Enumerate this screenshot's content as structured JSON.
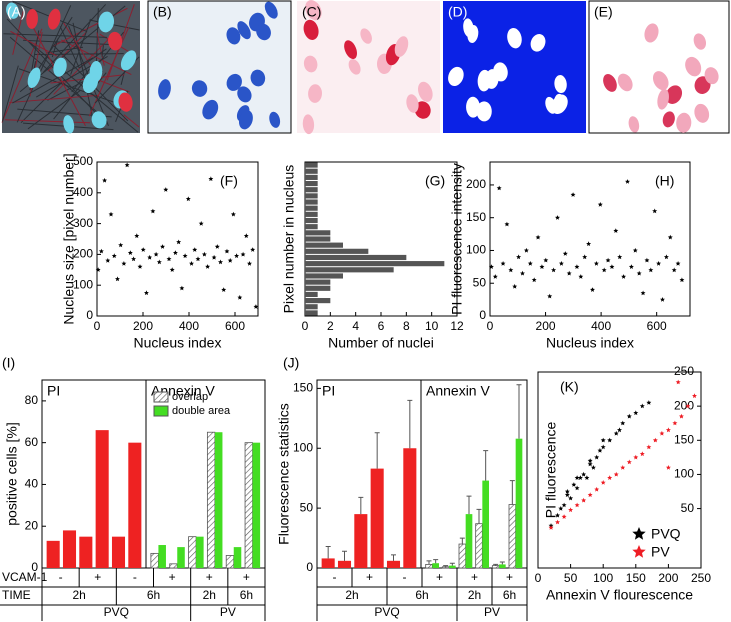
{
  "images": [
    {
      "label": "(A)"
    },
    {
      "label": "(B)"
    },
    {
      "label": "(C)"
    },
    {
      "label": "(D)"
    },
    {
      "label": "(E)"
    }
  ],
  "chart_data": [
    {
      "type": "scatter",
      "label": "(F)",
      "xlabel": "Nucleus index",
      "ylabel": "Nucleus size [pixel number]",
      "xlim": [
        0,
        700
      ],
      "xticks": [
        0,
        200,
        400,
        600
      ],
      "ylim": [
        0,
        500
      ],
      "yticks": [
        0,
        100,
        200,
        300,
        400,
        500
      ],
      "x": [
        5,
        19,
        33,
        47,
        61,
        75,
        89,
        103,
        117,
        131,
        145,
        159,
        173,
        187,
        201,
        215,
        229,
        243,
        257,
        271,
        285,
        299,
        313,
        327,
        341,
        355,
        369,
        383,
        397,
        411,
        425,
        439,
        453,
        467,
        481,
        495,
        509,
        523,
        537,
        551,
        565,
        579,
        593,
        607,
        621,
        635,
        649,
        663,
        677,
        691
      ],
      "series": [
        {
          "color": "#000000",
          "values": [
            150,
            210,
            440,
            180,
            330,
            195,
            120,
            230,
            170,
            490,
            205,
            185,
            260,
            160,
            215,
            75,
            190,
            340,
            200,
            175,
            225,
            410,
            185,
            150,
            205,
            240,
            90,
            195,
            380,
            170,
            215,
            185,
            300,
            200,
            160,
            445,
            190,
            225,
            175,
            85,
            210,
            180,
            330,
            195,
            60,
            200,
            260,
            170,
            215,
            30
          ]
        }
      ]
    },
    {
      "type": "histogram",
      "label": "(G)",
      "orientation": "horizontal",
      "xlabel": "Number of nuclei",
      "ylabel": "Pixel number in nucleus",
      "xlim": [
        0,
        12
      ],
      "xticks": [
        0,
        2,
        4,
        6,
        8,
        10,
        12
      ],
      "ylim": [
        0,
        500
      ],
      "color": "#555555",
      "bins": [
        0,
        20,
        40,
        60,
        80,
        100,
        120,
        140,
        160,
        180,
        200,
        220,
        240,
        260,
        280,
        300,
        320,
        340,
        360,
        380,
        400,
        420,
        440,
        460,
        480,
        500
      ],
      "counts": [
        1,
        1,
        2,
        1,
        2,
        2,
        3,
        7,
        11,
        8,
        5,
        3,
        2,
        2,
        1,
        1,
        1,
        1,
        1,
        1,
        1,
        1,
        1,
        1,
        1
      ]
    },
    {
      "type": "scatter",
      "label": "(H)",
      "xlabel": "Nucleus index",
      "ylabel": "PI fluorescence intensity",
      "xlim": [
        0,
        720
      ],
      "xticks": [
        0,
        200,
        400,
        600
      ],
      "ylim": [
        0,
        235
      ],
      "yticks": [
        0,
        50,
        100,
        150,
        200
      ],
      "x": [
        5,
        19,
        33,
        47,
        61,
        75,
        89,
        103,
        117,
        131,
        145,
        159,
        173,
        187,
        201,
        215,
        229,
        243,
        257,
        271,
        285,
        299,
        313,
        327,
        341,
        355,
        369,
        383,
        397,
        411,
        425,
        439,
        453,
        467,
        481,
        495,
        509,
        523,
        537,
        551,
        565,
        579,
        593,
        607,
        621,
        635,
        649,
        663,
        677,
        691
      ],
      "series": [
        {
          "color": "#000000",
          "values": [
            75,
            60,
            195,
            80,
            140,
            70,
            45,
            90,
            65,
            100,
            80,
            55,
            120,
            75,
            85,
            30,
            70,
            150,
            80,
            95,
            65,
            185,
            75,
            60,
            90,
            110,
            40,
            80,
            170,
            70,
            85,
            75,
            130,
            90,
            60,
            205,
            75,
            100,
            65,
            35,
            85,
            70,
            160,
            80,
            25,
            90,
            120,
            70,
            80,
            55
          ]
        }
      ]
    },
    {
      "type": "bar",
      "label": "(I)",
      "ylabel": "positive cells [%]",
      "ylim": [
        0,
        90
      ],
      "yticks": [
        0,
        20,
        40,
        60,
        80
      ],
      "row_labels": [
        "VCAM-1",
        "TIME"
      ],
      "categories": [
        "-",
        "+",
        "-",
        "+",
        "+",
        "+"
      ],
      "groups": [
        {
          "name": "PVQ",
          "times": [
            "2h",
            "6h"
          ]
        },
        {
          "name": "PV",
          "times": [
            "2h",
            "6h"
          ]
        }
      ],
      "panels": [
        {
          "title": "PI",
          "series": [
            {
              "color": "#ee2222",
              "values": [
                13,
                18,
                15,
                66,
                15,
                60
              ]
            }
          ]
        },
        {
          "title": "Annexin V",
          "series": [
            {
              "name": "overlap",
              "pattern": "hatch",
              "values": [
                7,
                2,
                15,
                65,
                6,
                60
              ]
            },
            {
              "name": "double area",
              "color": "#44dd22",
              "values": [
                11,
                10,
                15,
                65,
                10,
                60
              ]
            }
          ]
        }
      ]
    },
    {
      "type": "bar",
      "label": "(J)",
      "ylabel": "Fluorescence statistics",
      "ylim": [
        0,
        157
      ],
      "yticks": [
        0,
        50,
        100,
        150
      ],
      "categories": [
        "-",
        "+",
        "-",
        "+",
        "+",
        "+"
      ],
      "groups": [
        {
          "name": "PVQ",
          "times": [
            "2h",
            "6h"
          ]
        },
        {
          "name": "PV",
          "times": [
            "2h",
            "6h"
          ]
        }
      ],
      "panels": [
        {
          "title": "PI",
          "series": [
            {
              "color": "#ee2222",
              "values": [
                8,
                6,
                45,
                83,
                6,
                100
              ],
              "errors": [
                10,
                8,
                14,
                30,
                5,
                40
              ]
            }
          ]
        },
        {
          "title": "Annexin V",
          "series": [
            {
              "pattern": "hatch",
              "values": [
                3,
                1,
                20,
                37,
                2,
                53
              ],
              "errors": [
                3,
                1,
                5,
                12,
                1,
                20
              ]
            },
            {
              "color": "#44dd22",
              "values": [
                4,
                2,
                45,
                73,
                3,
                108
              ],
              "errors": [
                3,
                2,
                15,
                25,
                2,
                45
              ]
            }
          ]
        }
      ]
    },
    {
      "type": "scatter",
      "label": "(K)",
      "xlabel": "Annexin V flourescence",
      "ylabel": "PI fluorescence",
      "ytick_side": "right",
      "xlim": [
        0,
        250
      ],
      "xticks": [
        0,
        50,
        100,
        150,
        200,
        250
      ],
      "ylim": [
        -37,
        250
      ],
      "yticks": [
        50,
        100,
        150,
        200,
        250
      ],
      "legend": "lower right",
      "series": [
        {
          "name": "PVQ",
          "color": "#000000",
          "x": [
            20,
            30,
            35,
            40,
            45,
            50,
            55,
            60,
            65,
            70,
            75,
            80,
            85,
            90,
            95,
            100,
            110,
            120,
            130,
            140,
            150,
            160,
            170,
            45,
            60,
            80,
            100,
            125
          ],
          "values": [
            25,
            40,
            50,
            55,
            70,
            65,
            85,
            80,
            95,
            100,
            95,
            115,
            110,
            125,
            135,
            140,
            150,
            160,
            175,
            185,
            190,
            200,
            205,
            75,
            95,
            120,
            150,
            165
          ]
        },
        {
          "name": "PV",
          "color": "#ee1c24",
          "x": [
            20,
            30,
            40,
            50,
            60,
            70,
            80,
            90,
            100,
            110,
            120,
            130,
            140,
            150,
            160,
            170,
            180,
            190,
            200,
            210,
            220,
            230,
            240,
            200,
            215
          ],
          "values": [
            22,
            30,
            38,
            48,
            55,
            62,
            70,
            78,
            88,
            95,
            100,
            110,
            118,
            125,
            130,
            140,
            150,
            160,
            165,
            175,
            185,
            200,
            215,
            110,
            235
          ]
        }
      ]
    }
  ]
}
